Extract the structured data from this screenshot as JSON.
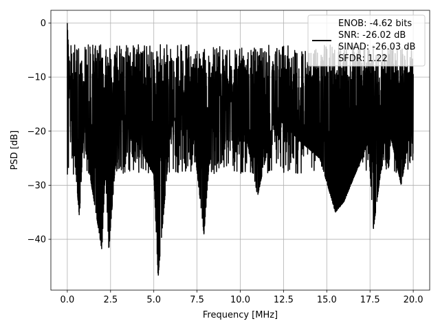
{
  "chart_data": {
    "type": "line",
    "title": "",
    "xlabel": "Frequency [MHz]",
    "ylabel": "PSD [dB]",
    "xlim": [
      -0.95,
      20.95
    ],
    "ylim": [
      -49.4,
      2.35
    ],
    "xticks": [
      0.0,
      2.5,
      5.0,
      7.5,
      10.0,
      12.5,
      15.0,
      17.5,
      20.0
    ],
    "xtick_labels": [
      "0.0",
      "2.5",
      "5.0",
      "7.5",
      "10.0",
      "12.5",
      "15.0",
      "17.5",
      "20.0"
    ],
    "yticks": [
      0,
      -10,
      -20,
      -30,
      -40
    ],
    "ytick_labels": [
      "0",
      "−10",
      "−20",
      "−30",
      "−40"
    ],
    "grid": true,
    "legend_position": "top-right",
    "legend_lines": [
      "ENOB: -4.62 bits",
      "SNR: -26.02 dB",
      "SINAD: -26.03 dB",
      "SFDR: 1.22"
    ],
    "series": [
      {
        "color": "#000000",
        "description": "dense noise-like spectrum, mostly between -30 and -5 dB with peaks up to 0 dB and deep dips",
        "x": [
          0,
          0.3,
          0.7,
          1.0,
          1.3,
          2.0,
          2.2,
          2.4,
          3.0,
          4.0,
          5.0,
          5.25,
          6.0,
          7.0,
          7.9,
          8.5,
          10.0,
          11.0,
          12.0,
          13.5,
          14.6,
          15.5,
          16.0,
          17.4,
          17.7,
          18.5,
          19.3,
          20.0
        ],
        "y": [
          0,
          -20,
          -36,
          -16,
          -28,
          -42,
          -27,
          -42,
          -17,
          -22,
          -28,
          -47,
          -19,
          -13,
          -39,
          -13,
          -15,
          -32,
          -17,
          -22,
          -25,
          -35,
          -33,
          -22,
          -38,
          -18,
          -30,
          -17
        ]
      }
    ]
  }
}
